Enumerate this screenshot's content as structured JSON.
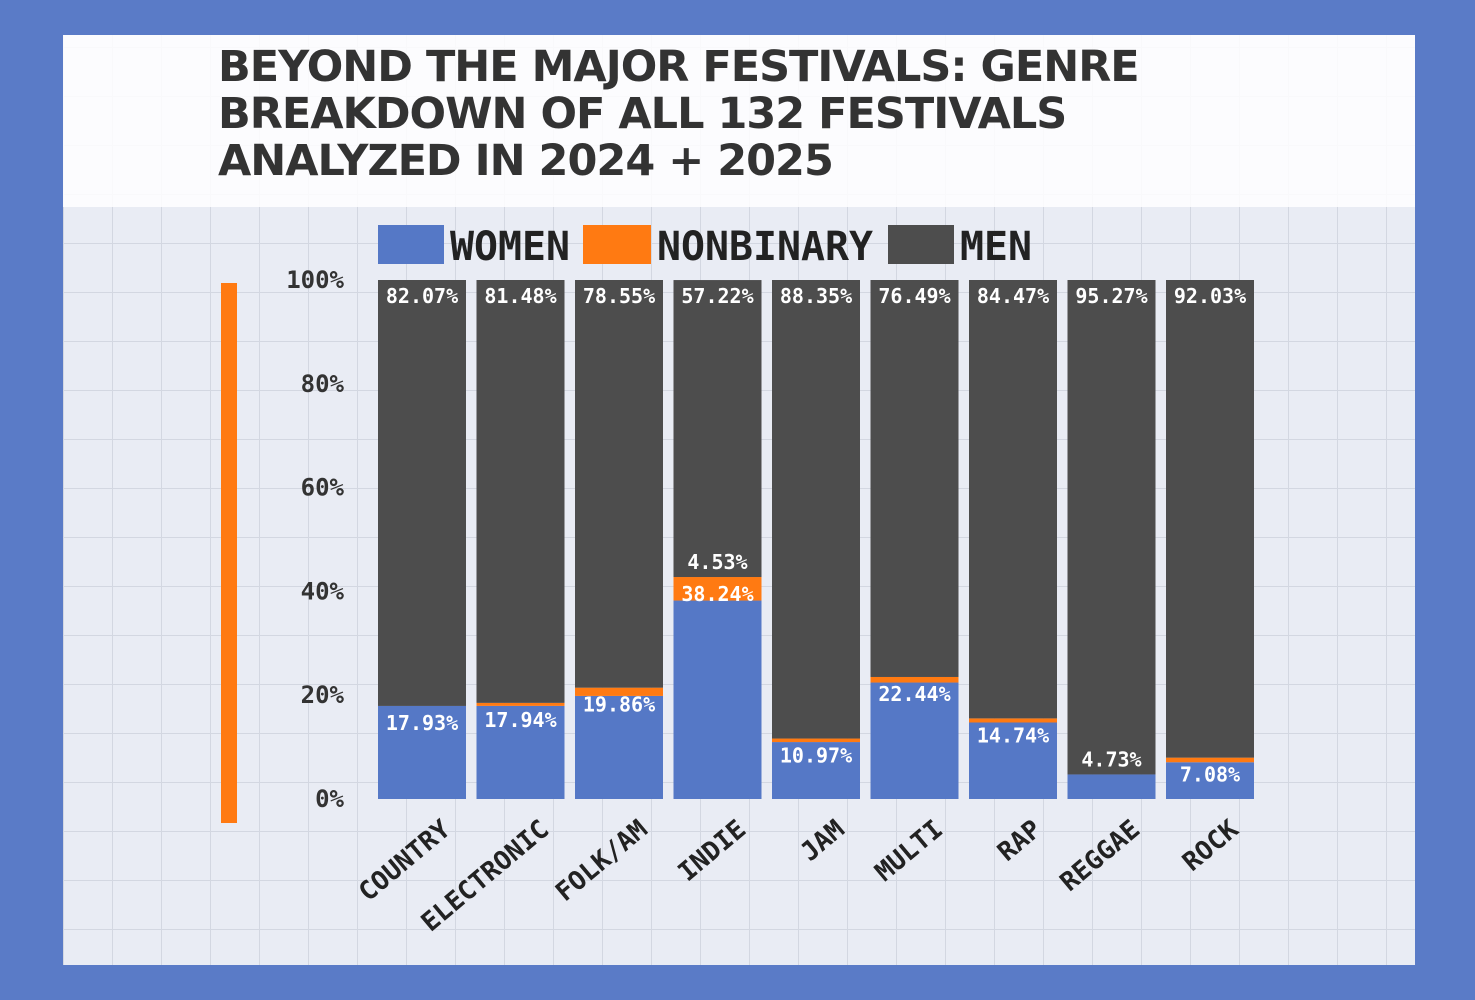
{
  "chart_data": {
    "type": "bar",
    "stacked": true,
    "title": "BEYOND THE MAJOR FESTIVALS: GENRE BREAKDOWN OF ALL 132 FESTIVALS ANALYZED IN 2024 + 2025",
    "categories": [
      "COUNTRY",
      "ELECTRONIC",
      "FOLK/AM",
      "INDIE",
      "JAM",
      "MULTI",
      "RAP",
      "REGGAE",
      "ROCK"
    ],
    "series": [
      {
        "name": "WOMEN",
        "color": "#5578c6",
        "values": [
          17.93,
          17.94,
          19.86,
          38.24,
          10.97,
          22.44,
          14.74,
          4.73,
          7.08
        ],
        "labels": [
          "17.93%",
          "17.94%",
          "19.86%",
          "38.24%",
          "10.97%",
          "22.44%",
          "14.74%",
          "4.73%",
          "7.08%"
        ]
      },
      {
        "name": "NONBINARY",
        "color": "#ff7a12",
        "values": [
          0,
          0.58,
          1.59,
          4.53,
          0.68,
          1.07,
          0.79,
          0,
          0.89
        ],
        "labels": [
          "",
          "",
          "",
          "4.53%",
          "",
          "",
          "",
          "",
          ""
        ]
      },
      {
        "name": "MEN",
        "color": "#4d4d4d",
        "values": [
          82.07,
          81.48,
          78.55,
          57.22,
          88.35,
          76.49,
          84.47,
          95.27,
          92.03
        ],
        "labels": [
          "82.07%",
          "81.48%",
          "78.55%",
          "57.22%",
          "88.35%",
          "76.49%",
          "84.47%",
          "95.27%",
          "92.03%"
        ]
      }
    ],
    "yticks": [
      "0%",
      "20%",
      "40%",
      "60%",
      "80%",
      "100%"
    ],
    "ylim": [
      0,
      100
    ],
    "legend": "top",
    "grid": false
  }
}
